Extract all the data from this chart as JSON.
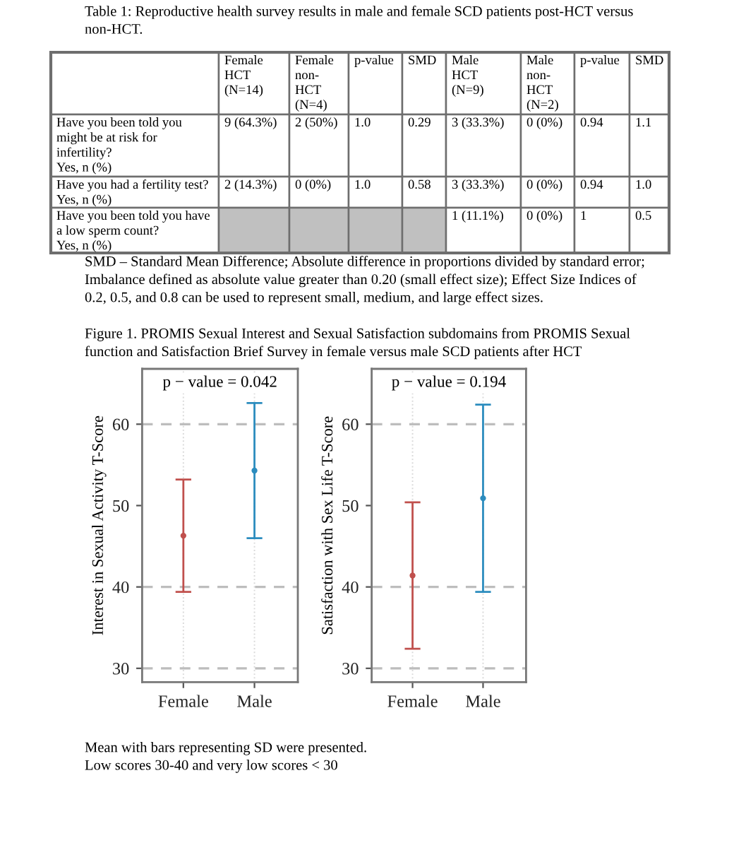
{
  "chart_data": [
    {
      "type": "other",
      "title": "Table 1: Reproductive health survey results in male and female SCD patients post-HCT versus\nnon-HCT.",
      "categories": [
        null,
        "Female\nHCT\n(N=14)",
        "Female\nnon-\nHCT\n(N=4)",
        "p-value",
        "SMD",
        "Male\nHCT\n(N=9)",
        "Male\nnon-\nHCT\n(N=2)",
        "p-value",
        "SMD"
      ],
      "y_categories": [
        "Have you been told you\nmight be at risk for\ninfertility?\nYes, n (%)",
        "Have you had a fertility test?\nYes, n (%)",
        "Have you been told you have\na low sperm count?\nYes, n (%)"
      ],
      "cell_labels": [
        [
          "9 (64.3%)",
          "2 (50%)",
          "1.0",
          "0.29",
          "3 (33.3%)",
          "0 (0%)",
          "0.94",
          "1.1"
        ],
        [
          "2 (14.3%)",
          "0 (0%)",
          "1.0",
          "0.58",
          "3 (33.3%)",
          "0 (0%)",
          "0.94",
          "1.0"
        ],
        [
          null,
          null,
          null,
          null,
          "1 (11.1%)",
          "0 (0%)",
          "1",
          "0.5"
        ]
      ],
      "annotations": [
        "SMD – Standard Mean Difference; Absolute difference in proportions divided by standard error;\nImbalance defined as absolute value greater than 0.20 (small effect size); Effect Size Indices of\n0.2, 0.5, and 0.8 can be used to represent small, medium, and large effect sizes."
      ]
    },
    {
      "type": "scatter",
      "title": "p − value = 0.042",
      "ylabel": "Interest in Sexual Activity T-Score",
      "categories": [
        "Female",
        "Male"
      ],
      "values": [
        46.3,
        54.3
      ],
      "errors": [
        6.9,
        8.3
      ],
      "colors": [
        "#c0504d",
        "#2b8cbe"
      ],
      "marker": "circle",
      "ylim": [
        28.3,
        66.8
      ],
      "yticks": [
        30,
        40,
        50,
        60
      ],
      "grid": "x",
      "ref_lines": [
        {
          "axis": "y",
          "value": 30,
          "color": "#bdbdbd",
          "line_style": "dashed"
        },
        {
          "axis": "y",
          "value": 40,
          "color": "#bdbdbd",
          "line_style": "dashed"
        },
        {
          "axis": "y",
          "value": 60,
          "color": "#bdbdbd",
          "line_style": "dashed"
        }
      ],
      "annotations": [
        "Figure 1. PROMIS Sexual Interest and Sexual Satisfaction subdomains from PROMIS Sexual\nfunction and Satisfaction Brief Survey in female versus male SCD patients after HCT"
      ]
    },
    {
      "type": "scatter",
      "title": "p − value = 0.194",
      "ylabel": "Satisfaction with Sex Life T-Score",
      "categories": [
        "Female",
        "Male"
      ],
      "values": [
        41.4,
        50.9
      ],
      "errors": [
        9.0,
        11.5
      ],
      "colors": [
        "#c0504d",
        "#2b8cbe"
      ],
      "marker": "circle",
      "ylim": [
        28.3,
        66.8
      ],
      "yticks": [
        30,
        40,
        50,
        60
      ],
      "grid": "x",
      "ref_lines": [
        {
          "axis": "y",
          "value": 30,
          "color": "#bdbdbd",
          "line_style": "dashed"
        },
        {
          "axis": "y",
          "value": 40,
          "color": "#bdbdbd",
          "line_style": "dashed"
        },
        {
          "axis": "y",
          "value": 60,
          "color": "#bdbdbd",
          "line_style": "dashed"
        }
      ],
      "annotations": [
        "Mean with bars representing SD were presented.\nLow scores 30-40 and very low scores < 30"
      ]
    }
  ]
}
